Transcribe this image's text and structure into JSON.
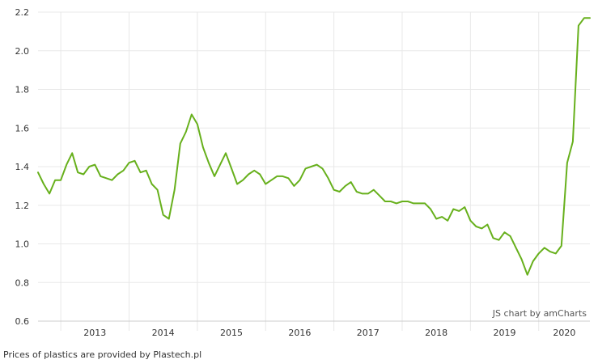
{
  "chart_data": {
    "type": "line",
    "title": "",
    "xlabel": "",
    "ylabel": "",
    "ylim": [
      0.6,
      2.2
    ],
    "yticks": [
      0.6,
      0.8,
      1.0,
      1.2,
      1.4,
      1.6,
      1.8,
      2.0,
      2.2
    ],
    "ytick_labels": [
      "0.6",
      "0.8",
      "1.0",
      "1.2",
      "1.4",
      "1.6",
      "1.8",
      "2.0",
      "2.2"
    ],
    "xlim": [
      "2012-09",
      "2020-10"
    ],
    "year_labels": [
      "2013",
      "2014",
      "2015",
      "2016",
      "2017",
      "2018",
      "2019",
      "2020"
    ],
    "grid": true,
    "series": [
      {
        "color": "#67b01c",
        "x": [
          "2012-09",
          "2012-10",
          "2012-11",
          "2012-12",
          "2013-01",
          "2013-02",
          "2013-03",
          "2013-04",
          "2013-05",
          "2013-06",
          "2013-07",
          "2013-08",
          "2013-09",
          "2013-10",
          "2013-11",
          "2013-12",
          "2014-01",
          "2014-02",
          "2014-03",
          "2014-04",
          "2014-05",
          "2014-06",
          "2014-07",
          "2014-08",
          "2014-09",
          "2014-10",
          "2014-11",
          "2014-12",
          "2015-01",
          "2015-02",
          "2015-03",
          "2015-04",
          "2015-05",
          "2015-06",
          "2015-07",
          "2015-08",
          "2015-09",
          "2015-10",
          "2015-11",
          "2015-12",
          "2016-01",
          "2016-02",
          "2016-03",
          "2016-04",
          "2016-05",
          "2016-06",
          "2016-07",
          "2016-08",
          "2016-09",
          "2016-10",
          "2016-11",
          "2016-12",
          "2017-01",
          "2017-02",
          "2017-03",
          "2017-04",
          "2017-05",
          "2017-06",
          "2017-07",
          "2017-08",
          "2017-09",
          "2017-10",
          "2017-11",
          "2017-12",
          "2018-01",
          "2018-02",
          "2018-03",
          "2018-04",
          "2018-05",
          "2018-06",
          "2018-07",
          "2018-08",
          "2018-09",
          "2018-10",
          "2018-11",
          "2018-12",
          "2019-01",
          "2019-02",
          "2019-03",
          "2019-04",
          "2019-05",
          "2019-06",
          "2019-07",
          "2019-08",
          "2019-09",
          "2019-10",
          "2019-11",
          "2019-12",
          "2020-01",
          "2020-02",
          "2020-03",
          "2020-04",
          "2020-05",
          "2020-06",
          "2020-07",
          "2020-08",
          "2020-09",
          "2020-10"
        ],
        "values": [
          1.37,
          1.31,
          1.26,
          1.33,
          1.33,
          1.41,
          1.47,
          1.37,
          1.36,
          1.4,
          1.41,
          1.35,
          1.34,
          1.33,
          1.36,
          1.38,
          1.42,
          1.43,
          1.37,
          1.38,
          1.31,
          1.28,
          1.15,
          1.13,
          1.28,
          1.52,
          1.58,
          1.67,
          1.62,
          1.5,
          1.42,
          1.35,
          1.41,
          1.47,
          1.39,
          1.31,
          1.33,
          1.36,
          1.38,
          1.36,
          1.31,
          1.33,
          1.35,
          1.35,
          1.34,
          1.3,
          1.33,
          1.39,
          1.4,
          1.41,
          1.39,
          1.34,
          1.28,
          1.27,
          1.3,
          1.32,
          1.27,
          1.26,
          1.26,
          1.28,
          1.25,
          1.22,
          1.22,
          1.21,
          1.22,
          1.22,
          1.21,
          1.21,
          1.21,
          1.18,
          1.13,
          1.14,
          1.12,
          1.18,
          1.17,
          1.19,
          1.12,
          1.09,
          1.08,
          1.1,
          1.03,
          1.02,
          1.06,
          1.04,
          0.98,
          0.92,
          0.84,
          0.91,
          0.95,
          0.98,
          0.96,
          0.95,
          0.99,
          1.42,
          1.53,
          2.13,
          2.17,
          2.17
        ]
      }
    ]
  },
  "credit": "JS chart by amCharts",
  "footnote": "Prices of plastics are provided by Plastech.pl"
}
